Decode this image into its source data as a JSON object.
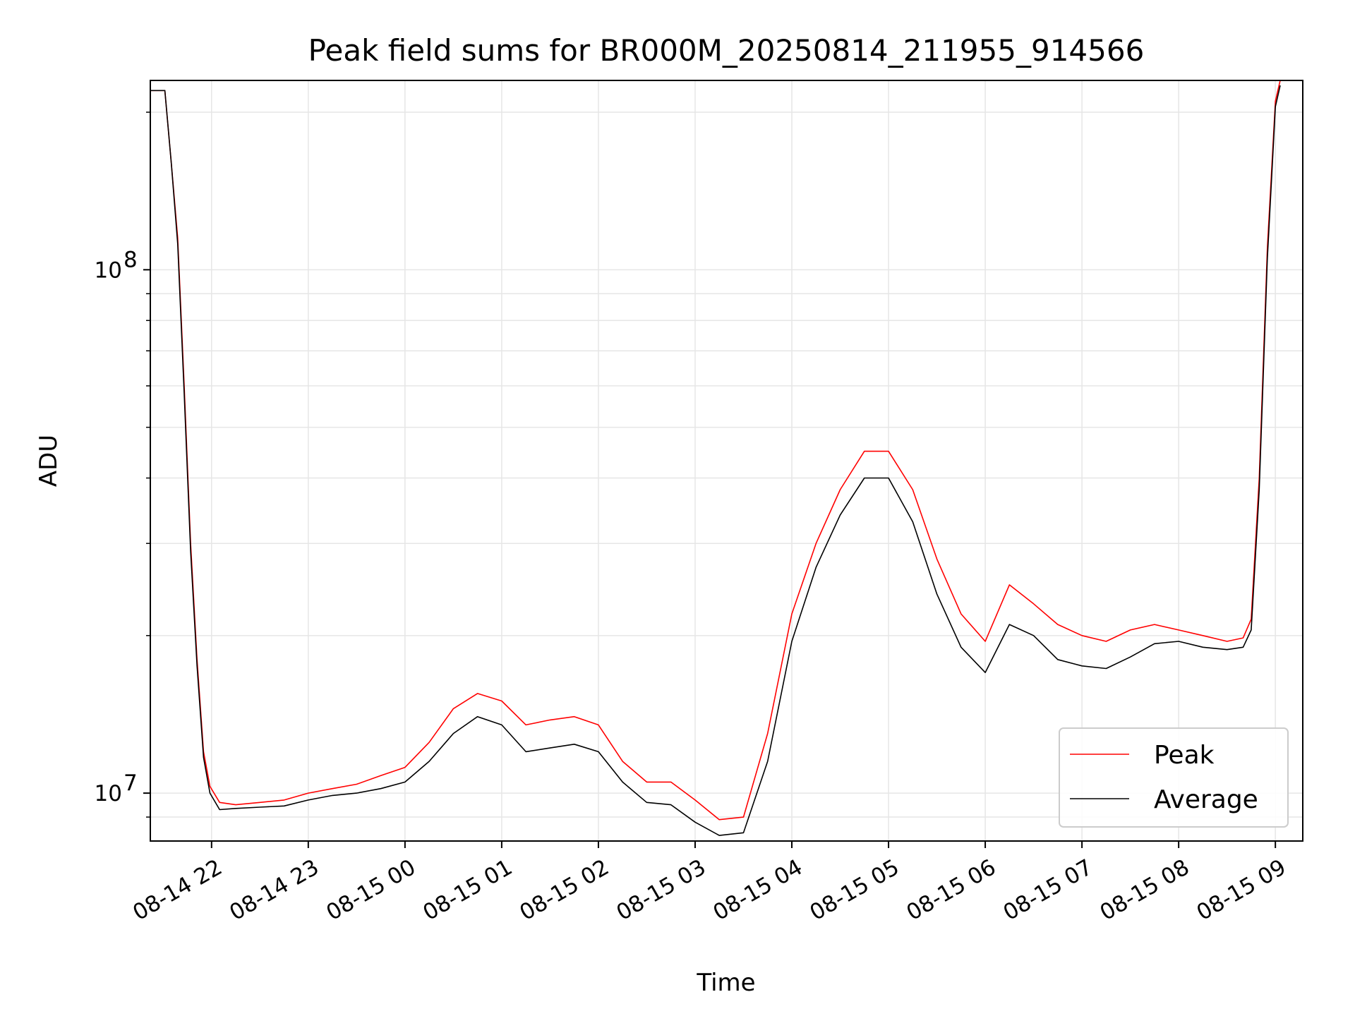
{
  "chart_data": {
    "type": "line",
    "title": "Peak field sums for BR000M_20250814_211955_914566",
    "xlabel": "Time",
    "ylabel": "ADU",
    "yscale": "log",
    "ylim": [
      8100000,
      230000000
    ],
    "xlim": [
      "2025-08-14 21:22",
      "2025-08-15 09:17"
    ],
    "grid": true,
    "legend_position": "lower right",
    "x_ticks": [
      {
        "value": "2025-08-14 22:00",
        "label": "08-14 22"
      },
      {
        "value": "2025-08-14 23:00",
        "label": "08-14 23"
      },
      {
        "value": "2025-08-15 00:00",
        "label": "08-15 00"
      },
      {
        "value": "2025-08-15 01:00",
        "label": "08-15 01"
      },
      {
        "value": "2025-08-15 02:00",
        "label": "08-15 02"
      },
      {
        "value": "2025-08-15 03:00",
        "label": "08-15 03"
      },
      {
        "value": "2025-08-15 04:00",
        "label": "08-15 04"
      },
      {
        "value": "2025-08-15 05:00",
        "label": "08-15 05"
      },
      {
        "value": "2025-08-15 06:00",
        "label": "08-15 06"
      },
      {
        "value": "2025-08-15 07:00",
        "label": "08-15 07"
      },
      {
        "value": "2025-08-15 08:00",
        "label": "08-15 08"
      },
      {
        "value": "2025-08-15 09:00",
        "label": "08-15 09"
      }
    ],
    "y_ticks": [
      {
        "value": 10000000,
        "base": "10",
        "exp": "7"
      },
      {
        "value": 100000000,
        "base": "10",
        "exp": "8"
      }
    ],
    "series": [
      {
        "name": "Peak",
        "color": "#ff0000",
        "x": [
          "2025-08-14 21:22",
          "2025-08-14 21:31",
          "2025-08-14 21:35",
          "2025-08-14 21:39",
          "2025-08-14 21:43",
          "2025-08-14 21:47",
          "2025-08-14 21:51",
          "2025-08-14 21:55",
          "2025-08-14 21:59",
          "2025-08-14 22:05",
          "2025-08-14 22:15",
          "2025-08-14 22:30",
          "2025-08-14 22:45",
          "2025-08-14 23:00",
          "2025-08-14 23:15",
          "2025-08-14 23:30",
          "2025-08-14 23:45",
          "2025-08-15 00:00",
          "2025-08-15 00:15",
          "2025-08-15 00:30",
          "2025-08-15 00:45",
          "2025-08-15 01:00",
          "2025-08-15 01:15",
          "2025-08-15 01:30",
          "2025-08-15 01:45",
          "2025-08-15 02:00",
          "2025-08-15 02:15",
          "2025-08-15 02:30",
          "2025-08-15 02:45",
          "2025-08-15 03:00",
          "2025-08-15 03:15",
          "2025-08-15 03:30",
          "2025-08-15 03:45",
          "2025-08-15 04:00",
          "2025-08-15 04:15",
          "2025-08-15 04:30",
          "2025-08-15 04:45",
          "2025-08-15 05:00",
          "2025-08-15 05:15",
          "2025-08-15 05:30",
          "2025-08-15 05:45",
          "2025-08-15 06:00",
          "2025-08-15 06:15",
          "2025-08-15 06:30",
          "2025-08-15 06:45",
          "2025-08-15 07:00",
          "2025-08-15 07:15",
          "2025-08-15 07:30",
          "2025-08-15 07:45",
          "2025-08-15 08:00",
          "2025-08-15 08:15",
          "2025-08-15 08:30",
          "2025-08-15 08:40",
          "2025-08-15 08:45",
          "2025-08-15 08:50",
          "2025-08-15 08:55",
          "2025-08-15 09:00",
          "2025-08-15 09:03"
        ],
        "y": [
          220000000,
          220000000,
          160000000,
          115000000,
          60000000,
          30000000,
          18000000,
          12000000,
          10300000,
          9600000,
          9500000,
          9600000,
          9700000,
          10000000,
          10200000,
          10400000,
          10800000,
          11200000,
          12500000,
          14500000,
          15500000,
          15000000,
          13500000,
          13800000,
          14000000,
          13500000,
          11500000,
          10500000,
          10500000,
          9700000,
          8900000,
          9000000,
          13000000,
          22000000,
          30000000,
          38000000,
          45000000,
          45000000,
          38000000,
          28000000,
          22000000,
          19500000,
          25000000,
          23000000,
          21000000,
          20000000,
          19500000,
          20500000,
          21000000,
          20500000,
          20000000,
          19500000,
          19800000,
          21500000,
          40000000,
          110000000,
          210000000,
          230000000
        ]
      },
      {
        "name": "Average",
        "color": "#000000",
        "x": [
          "2025-08-14 21:22",
          "2025-08-14 21:31",
          "2025-08-14 21:35",
          "2025-08-14 21:39",
          "2025-08-14 21:43",
          "2025-08-14 21:47",
          "2025-08-14 21:51",
          "2025-08-14 21:55",
          "2025-08-14 21:59",
          "2025-08-14 22:05",
          "2025-08-14 22:15",
          "2025-08-14 22:30",
          "2025-08-14 22:45",
          "2025-08-14 23:00",
          "2025-08-14 23:15",
          "2025-08-14 23:30",
          "2025-08-14 23:45",
          "2025-08-15 00:00",
          "2025-08-15 00:15",
          "2025-08-15 00:30",
          "2025-08-15 00:45",
          "2025-08-15 01:00",
          "2025-08-15 01:15",
          "2025-08-15 01:30",
          "2025-08-15 01:45",
          "2025-08-15 02:00",
          "2025-08-15 02:15",
          "2025-08-15 02:30",
          "2025-08-15 02:45",
          "2025-08-15 03:00",
          "2025-08-15 03:15",
          "2025-08-15 03:30",
          "2025-08-15 03:45",
          "2025-08-15 04:00",
          "2025-08-15 04:15",
          "2025-08-15 04:30",
          "2025-08-15 04:45",
          "2025-08-15 05:00",
          "2025-08-15 05:15",
          "2025-08-15 05:30",
          "2025-08-15 05:45",
          "2025-08-15 06:00",
          "2025-08-15 06:15",
          "2025-08-15 06:30",
          "2025-08-15 06:45",
          "2025-08-15 07:00",
          "2025-08-15 07:15",
          "2025-08-15 07:30",
          "2025-08-15 07:45",
          "2025-08-15 08:00",
          "2025-08-15 08:15",
          "2025-08-15 08:30",
          "2025-08-15 08:40",
          "2025-08-15 08:45",
          "2025-08-15 08:50",
          "2025-08-15 08:55",
          "2025-08-15 09:00",
          "2025-08-15 09:03"
        ],
        "y": [
          220000000,
          220000000,
          160000000,
          112000000,
          58000000,
          29000000,
          17500000,
          11700000,
          10000000,
          9300000,
          9350000,
          9400000,
          9450000,
          9700000,
          9900000,
          10000000,
          10200000,
          10500000,
          11500000,
          13000000,
          14000000,
          13500000,
          12000000,
          12200000,
          12400000,
          12000000,
          10500000,
          9600000,
          9500000,
          8800000,
          8300000,
          8400000,
          11500000,
          19500000,
          27000000,
          34000000,
          40000000,
          40000000,
          33000000,
          24000000,
          19000000,
          17000000,
          21000000,
          20000000,
          18000000,
          17500000,
          17300000,
          18200000,
          19300000,
          19500000,
          19000000,
          18800000,
          19000000,
          20500000,
          38000000,
          105000000,
          205000000,
          225000000
        ]
      }
    ],
    "legend": [
      {
        "label": "Peak",
        "color": "#ff0000"
      },
      {
        "label": "Average",
        "color": "#000000"
      }
    ]
  }
}
